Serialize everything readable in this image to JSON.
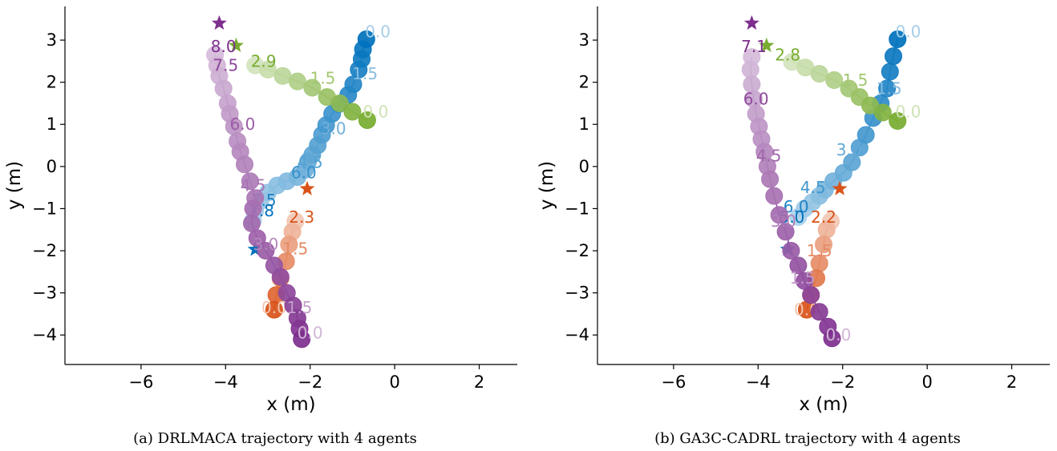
{
  "chart_data": [
    {
      "type": "scatter",
      "subtype": "agent-trajectories",
      "caption": "(a) DRLMACA trajectory with 4 agents",
      "xlabel": "x (m)",
      "ylabel": "y (m)",
      "xlim": [
        -7.8,
        2.9
      ],
      "ylim": [
        -4.7,
        3.8
      ],
      "xticks": [
        -6,
        -4,
        -2,
        0,
        2
      ],
      "yticks": [
        -4,
        -3,
        -2,
        -1,
        0,
        1,
        2,
        3
      ],
      "xtick_labels": [
        "−6",
        "−4",
        "−2",
        "0",
        "2"
      ],
      "ytick_labels": [
        "−4",
        "−3",
        "−2",
        "−1",
        "0",
        "1",
        "2",
        "3"
      ],
      "grid": false,
      "series": [
        {
          "color": "#0072bd",
          "goal": [
            -3.3,
            -1.97
          ],
          "points": [
            [
              -0.67,
              3.02
            ],
            [
              -0.75,
              2.78
            ],
            [
              -0.78,
              2.55
            ],
            [
              -0.85,
              2.3
            ],
            [
              -0.98,
              1.95
            ],
            [
              -1.1,
              1.7
            ],
            [
              -1.32,
              1.48
            ],
            [
              -1.48,
              1.25
            ],
            [
              -1.62,
              0.98
            ],
            [
              -1.72,
              0.75
            ],
            [
              -1.82,
              0.5
            ],
            [
              -1.95,
              0.28
            ],
            [
              -2.05,
              0.12
            ],
            [
              -2.12,
              -0.08
            ],
            [
              -2.3,
              -0.25
            ],
            [
              -2.55,
              -0.35
            ],
            [
              -2.78,
              -0.45
            ],
            [
              -3.0,
              -0.62
            ],
            [
              -3.18,
              -0.82
            ],
            [
              -3.3,
              -1.05
            ],
            [
              -3.35,
              -1.28
            ]
          ],
          "time_labels": [
            {
              "text": "0.0",
              "x": -0.4,
              "y": 3.2
            },
            {
              "text": "1.5",
              "x": -0.7,
              "y": 2.2
            },
            {
              "text": "3.0",
              "x": -1.45,
              "y": 0.9
            },
            {
              "text": "4.5",
              "x": -2.0,
              "y": 0.1
            },
            {
              "text": "6.0",
              "x": -2.15,
              "y": -0.15
            },
            {
              "text": "7.5",
              "x": -3.1,
              "y": -0.8
            },
            {
              "text": "7.8",
              "x": -3.15,
              "y": -1.05
            }
          ]
        },
        {
          "color": "#77ac30",
          "goal": [
            -3.75,
            2.87
          ],
          "points": [
            [
              -0.65,
              1.1
            ],
            [
              -1.0,
              1.3
            ],
            [
              -1.3,
              1.5
            ],
            [
              -1.6,
              1.65
            ],
            [
              -1.95,
              1.87
            ],
            [
              -2.3,
              2.02
            ],
            [
              -2.65,
              2.15
            ],
            [
              -3.0,
              2.3
            ],
            [
              -3.3,
              2.4
            ]
          ],
          "time_labels": [
            {
              "text": "0.0",
              "x": -0.45,
              "y": 1.3
            },
            {
              "text": "1.5",
              "x": -1.7,
              "y": 2.1
            },
            {
              "text": "2.9",
              "x": -3.1,
              "y": 2.5
            }
          ]
        },
        {
          "color": "#d95319",
          "goal": [
            -2.07,
            -0.53
          ],
          "points": [
            [
              -2.85,
              -3.4
            ],
            [
              -2.8,
              -3.05
            ],
            [
              -2.7,
              -2.65
            ],
            [
              -2.57,
              -2.25
            ],
            [
              -2.5,
              -1.85
            ],
            [
              -2.42,
              -1.55
            ],
            [
              -2.35,
              -1.3
            ]
          ],
          "time_labels": [
            {
              "text": "0.0",
              "x": -2.85,
              "y": -3.35
            },
            {
              "text": "1.5",
              "x": -2.35,
              "y": -1.95
            },
            {
              "text": "2.3",
              "x": -2.2,
              "y": -1.2
            }
          ]
        },
        {
          "color": "#7e2f8e",
          "goal": [
            -4.15,
            3.4
          ],
          "points": [
            [
              -2.2,
              -4.1
            ],
            [
              -2.25,
              -3.85
            ],
            [
              -2.3,
              -3.6
            ],
            [
              -2.4,
              -3.3
            ],
            [
              -2.55,
              -3.0
            ],
            [
              -2.7,
              -2.62
            ],
            [
              -2.85,
              -2.35
            ],
            [
              -3.05,
              -2.0
            ],
            [
              -3.25,
              -1.7
            ],
            [
              -3.38,
              -1.35
            ],
            [
              -3.35,
              -1.0
            ],
            [
              -3.3,
              -0.75
            ],
            [
              -3.42,
              -0.35
            ],
            [
              -3.55,
              0.05
            ],
            [
              -3.65,
              0.35
            ],
            [
              -3.72,
              0.6
            ],
            [
              -3.8,
              0.95
            ],
            [
              -3.9,
              1.25
            ],
            [
              -3.95,
              1.5
            ],
            [
              -4.05,
              1.85
            ],
            [
              -4.15,
              2.15
            ],
            [
              -4.2,
              2.4
            ],
            [
              -4.25,
              2.65
            ]
          ],
          "time_labels": [
            {
              "text": "0.0",
              "x": -2.0,
              "y": -3.95
            },
            {
              "text": "1.5",
              "x": -2.25,
              "y": -3.35
            },
            {
              "text": "3.0",
              "x": -3.05,
              "y": -1.85
            },
            {
              "text": "4.5",
              "x": -3.35,
              "y": -0.45
            },
            {
              "text": "6.0",
              "x": -3.6,
              "y": 1.0
            },
            {
              "text": "7.5",
              "x": -4.0,
              "y": 2.4
            },
            {
              "text": "8.0",
              "x": -4.05,
              "y": 2.85
            }
          ]
        }
      ]
    },
    {
      "type": "scatter",
      "subtype": "agent-trajectories",
      "caption": "(b) GA3C-CADRL trajectory with 4 agents",
      "xlabel": "x (m)",
      "ylabel": "y (m)",
      "xlim": [
        -7.8,
        2.9
      ],
      "ylim": [
        -4.7,
        3.8
      ],
      "xticks": [
        -6,
        -4,
        -2,
        0,
        2
      ],
      "yticks": [
        -4,
        -3,
        -2,
        -1,
        0,
        1,
        2,
        3
      ],
      "xtick_labels": [
        "−6",
        "−4",
        "−2",
        "0",
        "2"
      ],
      "ytick_labels": [
        "−4",
        "−3",
        "−2",
        "−1",
        "0",
        "1",
        "2",
        "3"
      ],
      "grid": false,
      "series": [
        {
          "color": "#0072bd",
          "goal": [
            -3.3,
            -1.97
          ],
          "points": [
            [
              -0.7,
              3.02
            ],
            [
              -0.8,
              2.62
            ],
            [
              -0.88,
              2.25
            ],
            [
              -0.95,
              1.85
            ],
            [
              -1.1,
              1.5
            ],
            [
              -1.28,
              1.15
            ],
            [
              -1.45,
              0.75
            ],
            [
              -1.6,
              0.45
            ],
            [
              -1.78,
              0.1
            ],
            [
              -1.98,
              -0.15
            ],
            [
              -2.22,
              -0.35
            ],
            [
              -2.42,
              -0.55
            ],
            [
              -2.55,
              -0.7
            ],
            [
              -2.72,
              -0.85
            ],
            [
              -2.9,
              -1.0
            ],
            [
              -3.05,
              -1.2
            ]
          ],
          "time_labels": [
            {
              "text": "0.0",
              "x": -0.45,
              "y": 3.2
            },
            {
              "text": "1.5",
              "x": -0.9,
              "y": 1.85
            },
            {
              "text": "3.0",
              "x": -1.85,
              "y": 0.4
            },
            {
              "text": "4.5",
              "x": -2.7,
              "y": -0.5
            },
            {
              "text": "6.0",
              "x": -3.1,
              "y": -0.95
            },
            {
              "text": "5.0",
              "x": -3.2,
              "y": -1.2
            }
          ]
        },
        {
          "color": "#77ac30",
          "goal": [
            -3.8,
            2.87
          ],
          "points": [
            [
              -0.7,
              1.08
            ],
            [
              -1.05,
              1.28
            ],
            [
              -1.35,
              1.45
            ],
            [
              -1.6,
              1.65
            ],
            [
              -1.85,
              1.85
            ],
            [
              -2.2,
              2.05
            ],
            [
              -2.55,
              2.2
            ],
            [
              -2.88,
              2.35
            ],
            [
              -3.2,
              2.48
            ]
          ],
          "time_labels": [
            {
              "text": "0.0",
              "x": -0.45,
              "y": 1.3
            },
            {
              "text": "1.5",
              "x": -1.7,
              "y": 2.05
            },
            {
              "text": "2.8",
              "x": -3.3,
              "y": 2.65
            }
          ]
        },
        {
          "color": "#d95319",
          "goal": [
            -2.07,
            -0.53
          ],
          "points": [
            [
              -2.85,
              -3.4
            ],
            [
              -2.75,
              -3.05
            ],
            [
              -2.62,
              -2.65
            ],
            [
              -2.55,
              -2.3
            ],
            [
              -2.45,
              -1.85
            ],
            [
              -2.38,
              -1.5
            ],
            [
              -2.28,
              -1.3
            ]
          ],
          "time_labels": [
            {
              "text": "0.0",
              "x": -2.85,
              "y": -3.4
            },
            {
              "text": "1.5",
              "x": -2.55,
              "y": -2.0
            },
            {
              "text": "2.2",
              "x": -2.45,
              "y": -1.2
            }
          ]
        },
        {
          "color": "#7e2f8e",
          "goal": [
            -4.15,
            3.4
          ],
          "points": [
            [
              -2.25,
              -4.08
            ],
            [
              -2.35,
              -3.8
            ],
            [
              -2.55,
              -3.45
            ],
            [
              -2.75,
              -3.05
            ],
            [
              -2.9,
              -2.72
            ],
            [
              -3.05,
              -2.35
            ],
            [
              -3.22,
              -2.0
            ],
            [
              -3.35,
              -1.55
            ],
            [
              -3.5,
              -1.15
            ],
            [
              -3.62,
              -0.7
            ],
            [
              -3.72,
              -0.3
            ],
            [
              -3.78,
              0.0
            ],
            [
              -3.85,
              0.35
            ],
            [
              -3.92,
              0.65
            ],
            [
              -3.98,
              0.95
            ],
            [
              -4.05,
              1.25
            ],
            [
              -4.1,
              1.6
            ],
            [
              -4.15,
              1.95
            ],
            [
              -4.18,
              2.3
            ],
            [
              -4.15,
              2.6
            ]
          ],
          "time_labels": [
            {
              "text": "0.0",
              "x": -2.1,
              "y": -4.0
            },
            {
              "text": "1.5",
              "x": -2.95,
              "y": -2.65
            },
            {
              "text": "3.0",
              "x": -3.4,
              "y": -1.3
            },
            {
              "text": "4.5",
              "x": -3.75,
              "y": 0.25
            },
            {
              "text": "6.0",
              "x": -4.05,
              "y": 1.6
            },
            {
              "text": "7.1",
              "x": -4.1,
              "y": 2.85
            }
          ]
        }
      ]
    }
  ]
}
